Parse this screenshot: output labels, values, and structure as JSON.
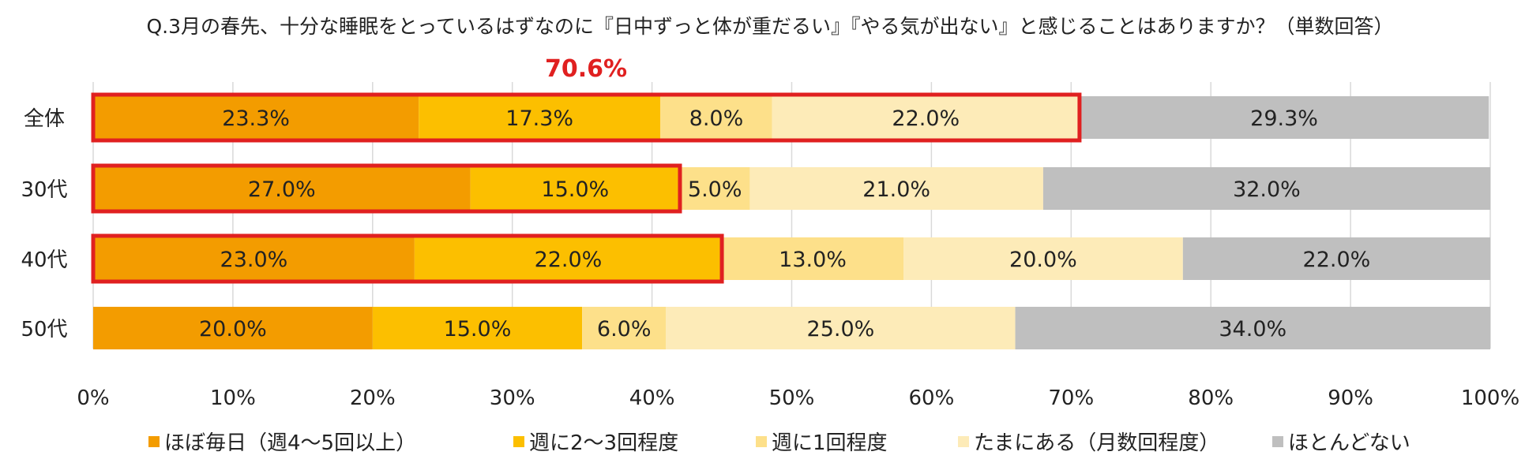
{
  "chart_data": {
    "type": "bar",
    "orientation": "horizontal",
    "stacked": true,
    "title": "Q.3月の春先、十分な睡眠をとっているはずなのに『日中ずっと体が重だるい』『やる気が出ない』と感じることはありますか？（単数回答）",
    "categories": [
      "全体",
      "30代",
      "40代",
      "50代"
    ],
    "series": [
      {
        "name": "ほぼ毎日（週4～5回以上）",
        "color": "#f39c00",
        "values": [
          23.3,
          27.0,
          23.0,
          20.0
        ],
        "labels": [
          "23.3%",
          "27.0%",
          "23.0%",
          "20.0%"
        ]
      },
      {
        "name": "週に2～3回程度",
        "color": "#fcbf00",
        "values": [
          17.3,
          15.0,
          22.0,
          15.0
        ],
        "labels": [
          "17.3%",
          "15.0%",
          "22.0%",
          "15.0%"
        ]
      },
      {
        "name": "週に1回程度",
        "color": "#fde08a",
        "values": [
          8.0,
          5.0,
          13.0,
          6.0
        ],
        "labels": [
          "8.0%",
          "5.0%",
          "13.0%",
          "6.0%"
        ]
      },
      {
        "name": "たまにある（月数回程度）",
        "color": "#fdebb8",
        "values": [
          22.0,
          21.0,
          20.0,
          25.0
        ],
        "labels": [
          "22.0%",
          "21.0%",
          "20.0%",
          "25.0%"
        ]
      },
      {
        "name": "ほとんどない",
        "color": "#bfbfbf",
        "values": [
          29.3,
          32.0,
          22.0,
          34.0
        ],
        "labels": [
          "29.3%",
          "32.0%",
          "22.0%",
          "34.0%"
        ]
      }
    ],
    "xlim": [
      0,
      100
    ],
    "xticks": [
      "0%",
      "10%",
      "20%",
      "30%",
      "40%",
      "50%",
      "60%",
      "70%",
      "80%",
      "90%",
      "100%"
    ],
    "grid": true,
    "legend_position": "bottom",
    "highlight": {
      "label": "70.6%",
      "color": "#e02020",
      "boxes": [
        {
          "category": "全体",
          "from": 0,
          "to": 70.6
        },
        {
          "category": "30代",
          "from": 0,
          "to": 42.0
        },
        {
          "category": "40代",
          "from": 0,
          "to": 45.0
        }
      ]
    }
  }
}
